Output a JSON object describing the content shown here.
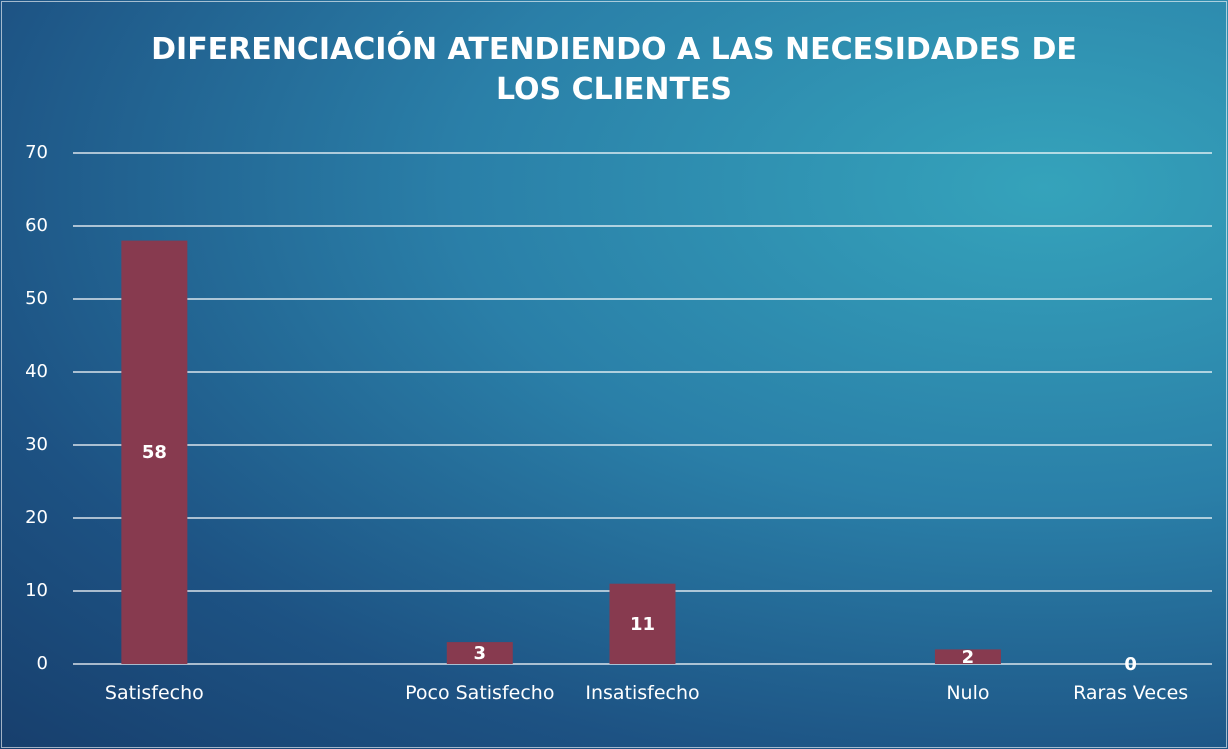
{
  "chart_data": {
    "type": "bar",
    "title": "DIFERENCIACIÓN ATENDIENDO A LAS NECESIDADES DE LOS CLIENTES",
    "categories": [
      "Satisfecho",
      null,
      "Poco Satisfecho",
      "Insatisfecho",
      null,
      "Nulo",
      "Raras Veces"
    ],
    "values": [
      58,
      null,
      3,
      11,
      null,
      2,
      0
    ],
    "color": "#873a4f",
    "ylim": [
      0,
      70
    ],
    "yticks": [
      0,
      10,
      20,
      30,
      40,
      50,
      60,
      70
    ],
    "grid": true
  }
}
